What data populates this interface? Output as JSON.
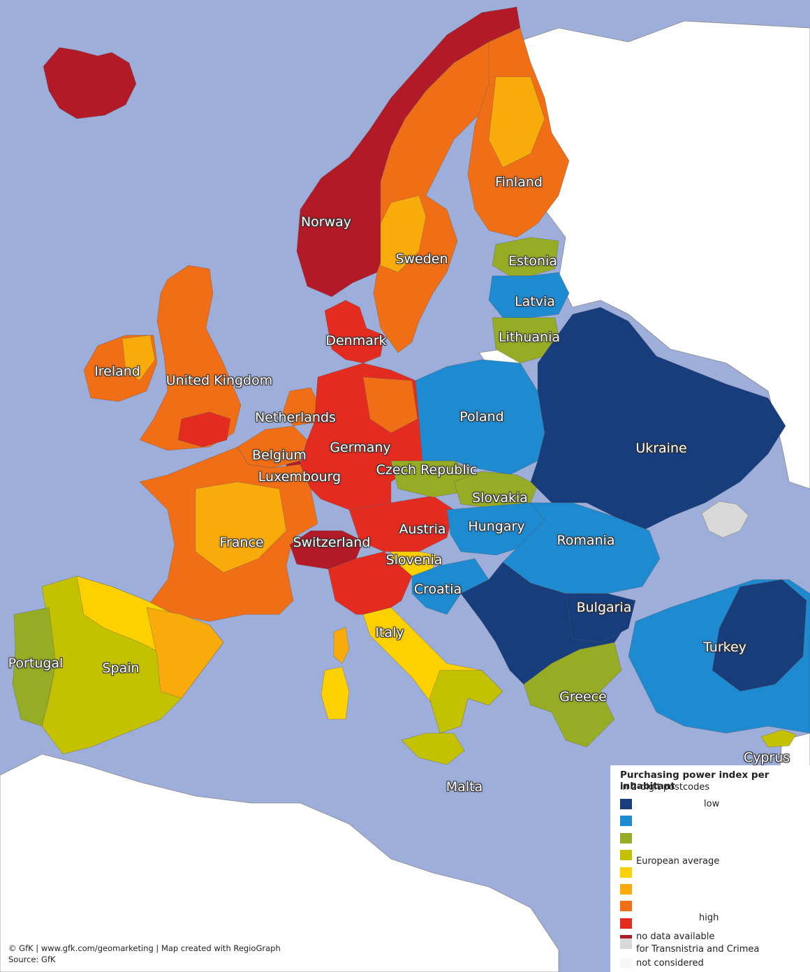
{
  "map": {
    "colors": {
      "sea": "#9eaedb",
      "land_outside": "#ffffff",
      "no_data": "#d9d9d9"
    },
    "countries": [
      {
        "label": "Norway",
        "class": 9
      },
      {
        "label": "Sweden",
        "class": 7
      },
      {
        "label": "Finland",
        "class": 7
      },
      {
        "label": "Estonia",
        "class": 3
      },
      {
        "label": "Latvia",
        "class": 2
      },
      {
        "label": "Lithuania",
        "class": 3
      },
      {
        "label": "Denmark",
        "class": 8
      },
      {
        "label": "Ireland",
        "class": 6
      },
      {
        "label": "United Kingdom",
        "class": 7
      },
      {
        "label": "Netherlands",
        "class": 7
      },
      {
        "label": "Belgium",
        "class": 7
      },
      {
        "label": "Luxembourg",
        "class": 9
      },
      {
        "label": "Germany",
        "class": 8
      },
      {
        "label": "Poland",
        "class": 2
      },
      {
        "label": "Czech Republic",
        "class": 3
      },
      {
        "label": "Slovakia",
        "class": 3
      },
      {
        "label": "Ukraine",
        "class": 1
      },
      {
        "label": "France",
        "class": 7
      },
      {
        "label": "Switzerland",
        "class": 9
      },
      {
        "label": "Austria",
        "class": 8
      },
      {
        "label": "Hungary",
        "class": 2
      },
      {
        "label": "Romania",
        "class": 2
      },
      {
        "label": "Slovenia",
        "class": 5
      },
      {
        "label": "Croatia",
        "class": 2
      },
      {
        "label": "Bulgaria",
        "class": 1
      },
      {
        "label": "Italy",
        "class": 6
      },
      {
        "label": "Portugal",
        "class": 3
      },
      {
        "label": "Spain",
        "class": 4
      },
      {
        "label": "Greece",
        "class": 3
      },
      {
        "label": "Turkey",
        "class": 2
      },
      {
        "label": "Cyprus",
        "class": 4
      },
      {
        "label": "Malta",
        "class": 5
      }
    ]
  },
  "legend": {
    "title": "Purchasing power index per inhabitant",
    "subtitle": "in 2-digit postcodes",
    "classes": [
      {
        "color": "#173d7c",
        "label": "low"
      },
      {
        "color": "#1e8ad0",
        "label": ""
      },
      {
        "color": "#97ac25",
        "label": ""
      },
      {
        "color": "#c4c200",
        "label": ""
      },
      {
        "color": "#fdd000",
        "label": "European average"
      },
      {
        "color": "#f9ab0c",
        "label": ""
      },
      {
        "color": "#ef6e16",
        "label": ""
      },
      {
        "color": "#e32b20",
        "label": ""
      },
      {
        "color": "#b21a27",
        "label": "high"
      }
    ],
    "extra": [
      {
        "color": "#d9d9d9",
        "label": "no data available",
        "label2": "for Transnistria and Crimea"
      },
      {
        "color": "#f7f7f7",
        "label": "not considered",
        "label2": ""
      }
    ]
  },
  "credits": {
    "line1": "© GfK | www.gfk.com/geomarketing | Map created with RegioGraph",
    "line2": "Source: GfK"
  }
}
